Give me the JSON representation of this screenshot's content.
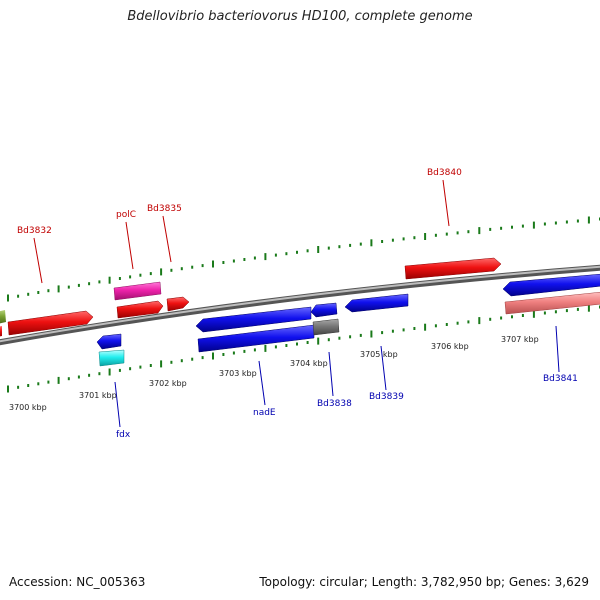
{
  "title": "Bdellovibrio bacteriovorus HD100, complete genome",
  "footer": {
    "accession": "Accession: NC_005363",
    "topology": "Topology: circular; Length: 3,782,950 bp; Genes: 3,629"
  },
  "colors": {
    "forward_label": "#c00000",
    "reverse_label": "#0000b0",
    "tick_green": "#1a7a1a"
  },
  "ticks": [
    {
      "label": "3700 kbp"
    },
    {
      "label": "3701 kbp"
    },
    {
      "label": "3702 kbp"
    },
    {
      "label": "3703 kbp"
    },
    {
      "label": "3704 kbp"
    },
    {
      "label": "3705 kbp"
    },
    {
      "label": "3706 kbp"
    },
    {
      "label": "3707 kbp"
    }
  ],
  "gene_labels": [
    {
      "text": "Bd3832",
      "strand": "forward"
    },
    {
      "text": "polC",
      "strand": "forward"
    },
    {
      "text": "Bd3835",
      "strand": "forward"
    },
    {
      "text": "Bd3840",
      "strand": "forward"
    },
    {
      "text": "fdx",
      "strand": "reverse"
    },
    {
      "text": "nadE",
      "strand": "reverse"
    },
    {
      "text": "Bd3838",
      "strand": "reverse"
    },
    {
      "text": "Bd3839",
      "strand": "reverse"
    },
    {
      "text": "Bd3841",
      "strand": "reverse"
    }
  ]
}
